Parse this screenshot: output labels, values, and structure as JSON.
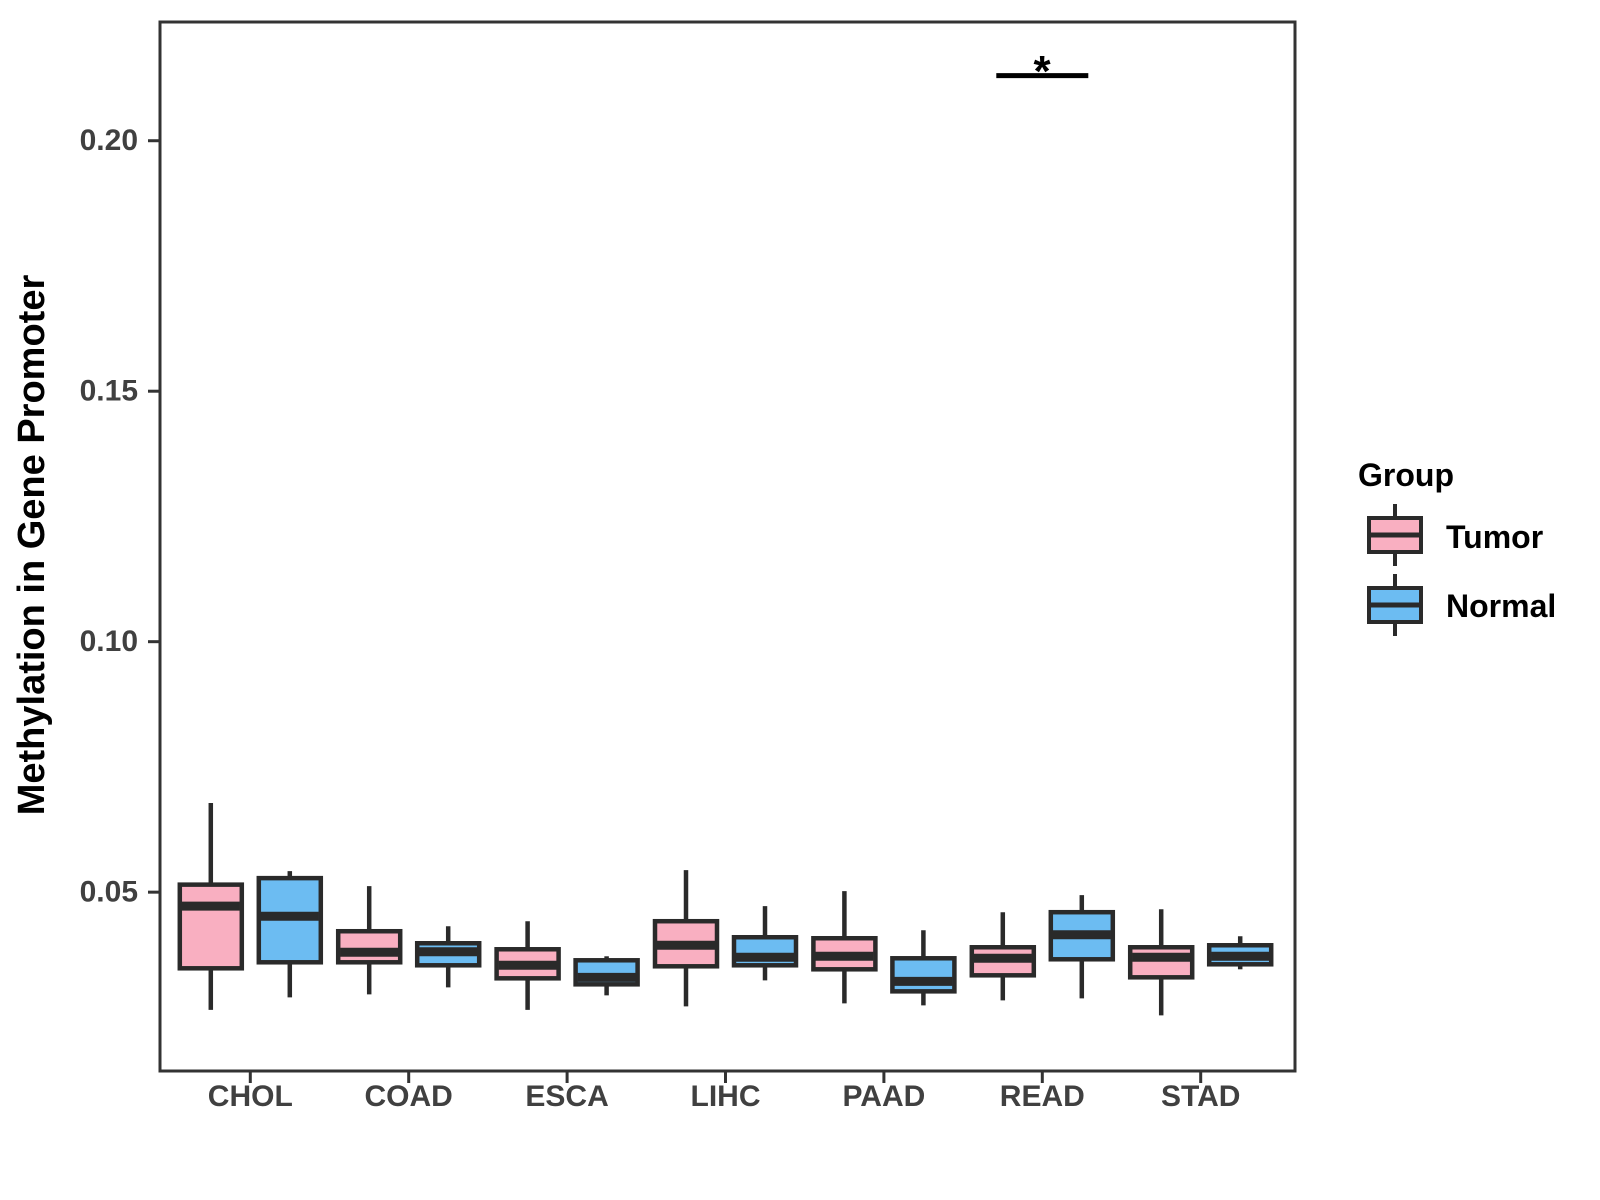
{
  "chart_data": {
    "type": "boxplot",
    "ylabel": "Methylation in Gene Promoter",
    "xlabel": "",
    "categories": [
      "CHOL",
      "COAD",
      "ESCA",
      "LIHC",
      "PAAD",
      "READ",
      "STAD"
    ],
    "y_axis": {
      "range": [
        0.0143,
        0.2237
      ],
      "ticks": [
        {
          "value": 0.05,
          "label": "0.05"
        },
        {
          "value": 0.1,
          "label": "0.10"
        },
        {
          "value": 0.15,
          "label": "0.15"
        },
        {
          "value": 0.2,
          "label": "0.20"
        }
      ]
    },
    "series": [
      {
        "name": "Tumor",
        "fill": "#F9AFC1",
        "boxes": [
          {
            "category": "CHOL",
            "low": 0.0265,
            "q1": 0.0348,
            "median": 0.0472,
            "q3": 0.0515,
            "high": 0.0678
          },
          {
            "category": "COAD",
            "low": 0.0296,
            "q1": 0.036,
            "median": 0.038,
            "q3": 0.0422,
            "high": 0.0512
          },
          {
            "category": "ESCA",
            "low": 0.0265,
            "q1": 0.0328,
            "median": 0.0354,
            "q3": 0.0386,
            "high": 0.0442
          },
          {
            "category": "LIHC",
            "low": 0.0272,
            "q1": 0.0352,
            "median": 0.0394,
            "q3": 0.0442,
            "high": 0.0544
          },
          {
            "category": "PAAD",
            "low": 0.0278,
            "q1": 0.0346,
            "median": 0.0372,
            "q3": 0.0408,
            "high": 0.0502
          },
          {
            "category": "READ",
            "low": 0.0284,
            "q1": 0.0334,
            "median": 0.0368,
            "q3": 0.039,
            "high": 0.046
          },
          {
            "category": "STAD",
            "low": 0.0254,
            "q1": 0.033,
            "median": 0.037,
            "q3": 0.039,
            "high": 0.0466
          }
        ]
      },
      {
        "name": "Normal",
        "fill": "#6CBCF2",
        "boxes": [
          {
            "category": "CHOL",
            "low": 0.029,
            "q1": 0.036,
            "median": 0.0452,
            "q3": 0.0528,
            "high": 0.0542
          },
          {
            "category": "COAD",
            "low": 0.031,
            "q1": 0.0354,
            "median": 0.0381,
            "q3": 0.0398,
            "high": 0.0432
          },
          {
            "category": "ESCA",
            "low": 0.0294,
            "q1": 0.0316,
            "median": 0.033,
            "q3": 0.0364,
            "high": 0.0372
          },
          {
            "category": "LIHC",
            "low": 0.0324,
            "q1": 0.0354,
            "median": 0.037,
            "q3": 0.041,
            "high": 0.0472
          },
          {
            "category": "PAAD",
            "low": 0.0274,
            "q1": 0.0302,
            "median": 0.0322,
            "q3": 0.0368,
            "high": 0.0424
          },
          {
            "category": "READ",
            "low": 0.0288,
            "q1": 0.0366,
            "median": 0.0415,
            "q3": 0.046,
            "high": 0.0494
          },
          {
            "category": "STAD",
            "low": 0.0346,
            "q1": 0.0356,
            "median": 0.0372,
            "q3": 0.0394,
            "high": 0.0412
          }
        ]
      }
    ],
    "legend": {
      "title": "Group",
      "position": "right",
      "entries": [
        {
          "label": "Tumor",
          "fill": "#F9AFC1"
        },
        {
          "label": "Normal",
          "fill": "#6CBCF2"
        }
      ]
    },
    "annotations": [
      {
        "type": "significance",
        "label": "*",
        "category": "READ",
        "y": 0.213
      }
    ],
    "grid": false
  },
  "style_colors": {
    "box_stroke": "#2A2A2A",
    "panel_border": "#333333",
    "axis_text": "#404040",
    "background": "#FFFFFF"
  }
}
